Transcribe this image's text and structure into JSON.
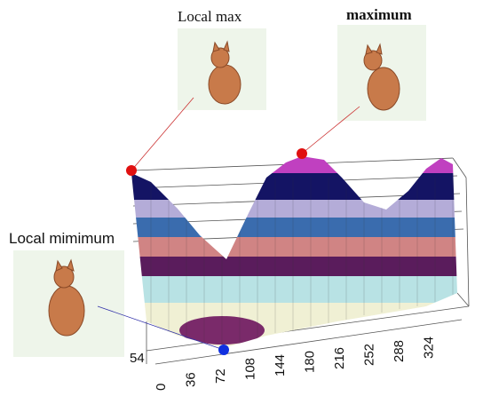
{
  "annotations": {
    "local_max": "Local max",
    "maximum": "maximum",
    "local_minimum": "Local mimimum"
  },
  "x_ticks": [
    0,
    36,
    72,
    108,
    144,
    180,
    216,
    252,
    288,
    324
  ],
  "y_ticks": [
    54
  ]
}
